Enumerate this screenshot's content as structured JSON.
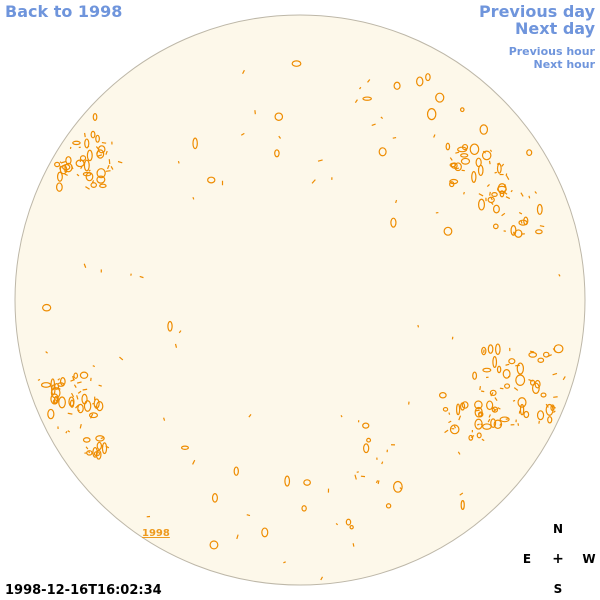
{
  "nav": {
    "back": "Back to 1998",
    "previous_day": "Previous day",
    "next_day": "Next day",
    "previous_hour": "Previous hour",
    "next_hour": "Next hour"
  },
  "year_marker": "1998",
  "timestamp": "1998-12-16T16:02:34",
  "compass": {
    "north": "N",
    "east": "E",
    "center": "+",
    "west": "W",
    "south": "S"
  },
  "colors": {
    "disk_fill": "#fdf8ea",
    "disk_edge": "#bdb7a8",
    "feature": "#ee8c00",
    "link": "#6f95dc"
  }
}
